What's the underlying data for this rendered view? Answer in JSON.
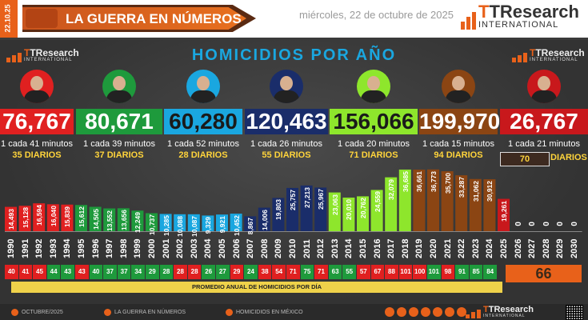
{
  "header": {
    "date_badge": "22.10.25",
    "title": "LA GUERRA EN NÚMEROS",
    "date": "miércoles, 22 de octubre de 2025",
    "logo_main": "TResearch",
    "logo_sub": "INTERNATIONAL"
  },
  "chart_data": {
    "type": "bar",
    "title": "HOMICIDIOS POR AÑO",
    "categories": [
      "1990",
      "1991",
      "1992",
      "1993",
      "1994",
      "1995",
      "1996",
      "1997",
      "1998",
      "1999",
      "2000",
      "2001",
      "2002",
      "2003",
      "2004",
      "2005",
      "2006",
      "2007",
      "2008",
      "2009",
      "2010",
      "2011",
      "2012",
      "2013",
      "2014",
      "2015",
      "2016",
      "2017",
      "2018",
      "2019",
      "2020",
      "2021",
      "2022",
      "2023",
      "2024",
      "2025",
      "2026",
      "2027",
      "2028",
      "2029",
      "2030"
    ],
    "value_labels": [
      "14,493",
      "15,128",
      "16,594",
      "16,040",
      "15,839",
      "15,612",
      "14,505",
      "13,552",
      "13,656",
      "12,249",
      "10,737",
      "10,285",
      "10,088",
      "10,087",
      "9,329",
      "9,921",
      "10,452",
      "8,867",
      "14,006",
      "19,803",
      "25,757",
      "27,213",
      "25,967",
      "23,063",
      "20,010",
      "20,762",
      "24,559",
      "32,079",
      "36,685",
      "36,661",
      "36,773",
      "35,700",
      "33,287",
      "31,062",
      "30,912",
      "19,261",
      "0",
      "0",
      "0",
      "0",
      "0"
    ],
    "values": [
      14493,
      15128,
      16594,
      16040,
      15839,
      15612,
      14505,
      13552,
      13656,
      12249,
      10737,
      10285,
      10088,
      10087,
      9329,
      9921,
      10452,
      8867,
      14006,
      19803,
      25757,
      27213,
      25967,
      23063,
      20010,
      20762,
      24559,
      32079,
      36685,
      36661,
      36773,
      35700,
      33287,
      31062,
      30912,
      19261,
      0,
      0,
      0,
      0,
      0
    ],
    "ylim": [
      0,
      40000
    ],
    "administrations": [
      {
        "total": "76,767",
        "rate": "1 cada 41 minutos",
        "daily": "35 DIARIOS",
        "color": "#e02020",
        "start": 0,
        "end": 4
      },
      {
        "total": "80,671",
        "rate": "1 cada 39 minutos",
        "daily": "37 DIARIOS",
        "color": "#1e9a3c",
        "start": 5,
        "end": 10
      },
      {
        "total": "60,280",
        "rate": "1 cada 52 minutos",
        "daily": "28 DIARIOS",
        "color": "#1aa7e0",
        "start": 11,
        "end": 16
      },
      {
        "total": "120,463",
        "rate": "1 cada 26 minutos",
        "daily": "55 DIARIOS",
        "color": "#1a2d6a",
        "start": 17,
        "end": 22
      },
      {
        "total": "156,066",
        "rate": "1 cada 20 minutos",
        "daily": "71 DIARIOS",
        "color": "#8ee62c",
        "start": 23,
        "end": 28
      },
      {
        "total": "199,970",
        "rate": "1 cada 15 minutos",
        "daily": "94 DIARIOS",
        "color": "#8b4513",
        "start": 29,
        "end": 34
      },
      {
        "total": "26,767",
        "rate_prefix": "1 cada",
        "rate_num": "21",
        "rate_unit": "minutos",
        "daily_num": "70",
        "daily_label": "DIARIOS",
        "color": "#c8181c",
        "start": 35,
        "end": 35
      }
    ],
    "daily_avg": [
      "40",
      "41",
      "45",
      "44",
      "43",
      "43",
      "40",
      "37",
      "37",
      "34",
      "29",
      "28",
      "28",
      "28",
      "26",
      "27",
      "29",
      "24",
      "38",
      "54",
      "71",
      "75",
      "71",
      "63",
      "55",
      "57",
      "67",
      "88",
      "101",
      "100",
      "101",
      "98",
      "91",
      "85",
      "84"
    ],
    "daily_avg_colors": [
      "#e02020",
      "#e02020",
      "#e02020",
      "#1e9a3c",
      "#1e9a3c",
      "#e02020",
      "#1e9a3c",
      "#1e9a3c",
      "#1e9a3c",
      "#1e9a3c",
      "#1e9a3c",
      "#1e9a3c",
      "#e02020",
      "#e02020",
      "#1e9a3c",
      "#1e9a3c",
      "#e02020",
      "#1e9a3c",
      "#e02020",
      "#e02020",
      "#e02020",
      "#1e9a3c",
      "#e02020",
      "#1e9a3c",
      "#1e9a3c",
      "#e02020",
      "#e02020",
      "#e02020",
      "#e02020",
      "#e02020",
      "#1e9a3c",
      "#e02020",
      "#1e9a3c",
      "#1e9a3c",
      "#1e9a3c"
    ],
    "daily_avg_label": "PROMEDIO ANUAL DE HOMICIDIOS POR DÍA",
    "current_avg": "66"
  },
  "footer": {
    "period": "OCTUBRE/2025",
    "section1": "LA GUERRA EN NÚMEROS",
    "section2": "HOMICIDIOS EN MÉXICO"
  }
}
